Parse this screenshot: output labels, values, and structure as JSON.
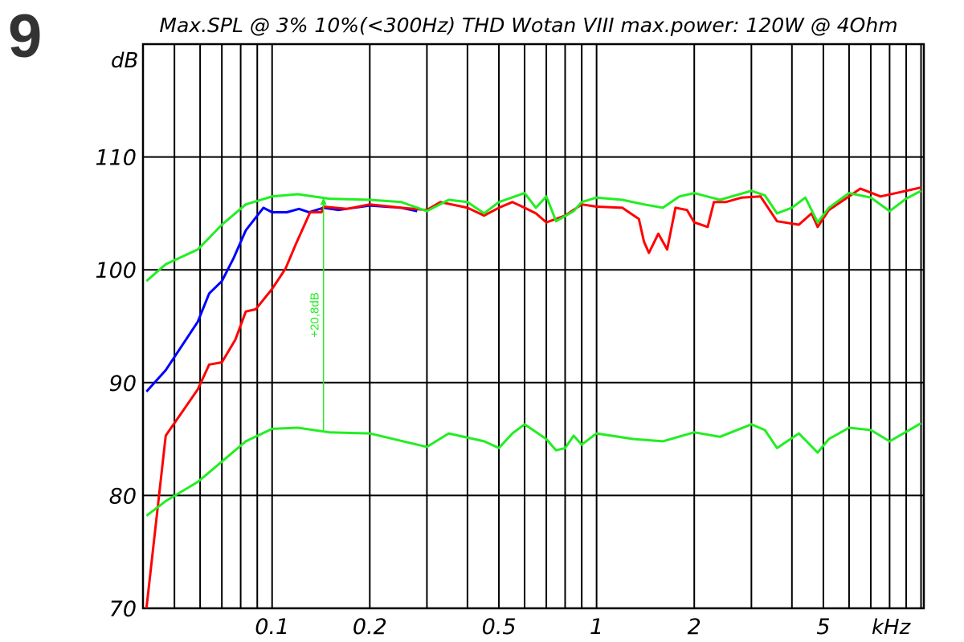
{
  "page_number": "9",
  "chart_data": {
    "type": "line",
    "title": "Max.SPL @ 3% 10%(<300Hz) THD Wotan VIII max.power: 120W @ 4Ohm",
    "ylabel": "dB",
    "xlabel": "kHz",
    "xscale": "log",
    "xlim": [
      0.04,
      10.2
    ],
    "ylim": [
      70,
      120
    ],
    "grid": true,
    "x_ticks": [
      0.1,
      0.2,
      0.5,
      1,
      2,
      5
    ],
    "x_tick_labels": [
      "0.1",
      "0.2",
      "0.5",
      "1",
      "2",
      "5"
    ],
    "y_ticks": [
      70,
      80,
      90,
      100,
      110
    ],
    "y_tick_labels": [
      "70",
      "80",
      "90",
      "100",
      "110"
    ],
    "colors": {
      "blue": "#0000ff",
      "red": "#ff0000",
      "green": "#22ee22",
      "grid": "#000000"
    },
    "series": [
      {
        "color": "#0000ff",
        "x": [
          0.041,
          0.047,
          0.059,
          0.064,
          0.07,
          0.076,
          0.083,
          0.094,
          0.1,
          0.111,
          0.121,
          0.13,
          0.144,
          0.16,
          0.2,
          0.25,
          0.28
        ],
        "y": [
          89.2,
          91.1,
          95.4,
          97.9,
          99,
          101,
          103.5,
          105.5,
          105.1,
          105.1,
          105.4,
          105.1,
          105.5,
          105.3,
          105.7,
          105.5,
          105.2
        ]
      },
      {
        "color": "#ff0000",
        "x": [
          0.041,
          0.047,
          0.059,
          0.064,
          0.07,
          0.077,
          0.083,
          0.089,
          0.1,
          0.11,
          0.118,
          0.131,
          0.142,
          0.144,
          0.17,
          0.2,
          0.25,
          0.3,
          0.33,
          0.4,
          0.45,
          0.5,
          0.55,
          0.6,
          0.65,
          0.7,
          0.8,
          0.9,
          1.0,
          1.2,
          1.35,
          1.4,
          1.45,
          1.55,
          1.65,
          1.75,
          1.9,
          2.0,
          2.2,
          2.3,
          2.5,
          2.8,
          3.2,
          3.6,
          4.2,
          4.6,
          4.8,
          5.2,
          6,
          6.5,
          7.5,
          9,
          10
        ],
        "y": [
          70,
          85.3,
          89.4,
          91.6,
          91.8,
          93.8,
          96.3,
          96.5,
          98.3,
          100.1,
          102.2,
          105.1,
          105.1,
          105.6,
          105.4,
          105.8,
          105.5,
          105.3,
          106,
          105.5,
          104.8,
          105.5,
          106,
          105.5,
          105,
          104.2,
          104.8,
          105.8,
          105.6,
          105.5,
          104.5,
          102.5,
          101.5,
          103.2,
          101.8,
          105.5,
          105.3,
          104.2,
          103.8,
          106,
          106,
          106.4,
          106.5,
          104.3,
          104,
          105,
          103.8,
          105.3,
          106.5,
          107.2,
          106.5,
          107,
          107.3
        ]
      },
      {
        "color": "#22ee22",
        "x": [
          0.041,
          0.047,
          0.059,
          0.07,
          0.083,
          0.1,
          0.12,
          0.15,
          0.2,
          0.25,
          0.3,
          0.35,
          0.4,
          0.45,
          0.5,
          0.6,
          0.65,
          0.7,
          0.75,
          0.85,
          0.9,
          1,
          1.2,
          1.4,
          1.6,
          1.8,
          2,
          2.4,
          3,
          3.3,
          3.6,
          4,
          4.4,
          4.8,
          5.2,
          6,
          7,
          8,
          9,
          10
        ],
        "y": [
          99,
          100.5,
          101.8,
          104,
          105.8,
          106.5,
          106.7,
          106.3,
          106.2,
          106,
          105.2,
          106.2,
          106,
          105,
          106,
          106.8,
          105.5,
          106.5,
          104.3,
          105.2,
          106,
          106.4,
          106.2,
          105.8,
          105.5,
          106.5,
          106.8,
          106.2,
          107,
          106.6,
          105,
          105.5,
          106.4,
          104.2,
          105.5,
          106.8,
          106.4,
          105.2,
          106.3,
          107
        ]
      },
      {
        "color": "#22ee22",
        "x": [
          0.041,
          0.047,
          0.059,
          0.07,
          0.083,
          0.1,
          0.12,
          0.15,
          0.2,
          0.3,
          0.35,
          0.45,
          0.5,
          0.55,
          0.6,
          0.7,
          0.75,
          0.8,
          0.85,
          0.9,
          1,
          1.3,
          1.6,
          2,
          2.4,
          3,
          3.3,
          3.6,
          4.2,
          4.8,
          5.2,
          6,
          7,
          8,
          10
        ],
        "y": [
          78.2,
          79.5,
          81.2,
          83,
          84.8,
          85.9,
          86,
          85.6,
          85.5,
          84.3,
          85.5,
          84.8,
          84.2,
          85.5,
          86.3,
          85,
          84,
          84.2,
          85.3,
          84.5,
          85.5,
          85,
          84.8,
          85.6,
          85.2,
          86.3,
          85.8,
          84.2,
          85.5,
          83.8,
          85,
          86,
          85.8,
          84.8,
          86.4
        ]
      }
    ],
    "annotations": [
      {
        "text": "+20,8dB",
        "x": 0.144,
        "y_from": 85.6,
        "y_to": 106.4,
        "color": "#22ee22"
      }
    ]
  }
}
